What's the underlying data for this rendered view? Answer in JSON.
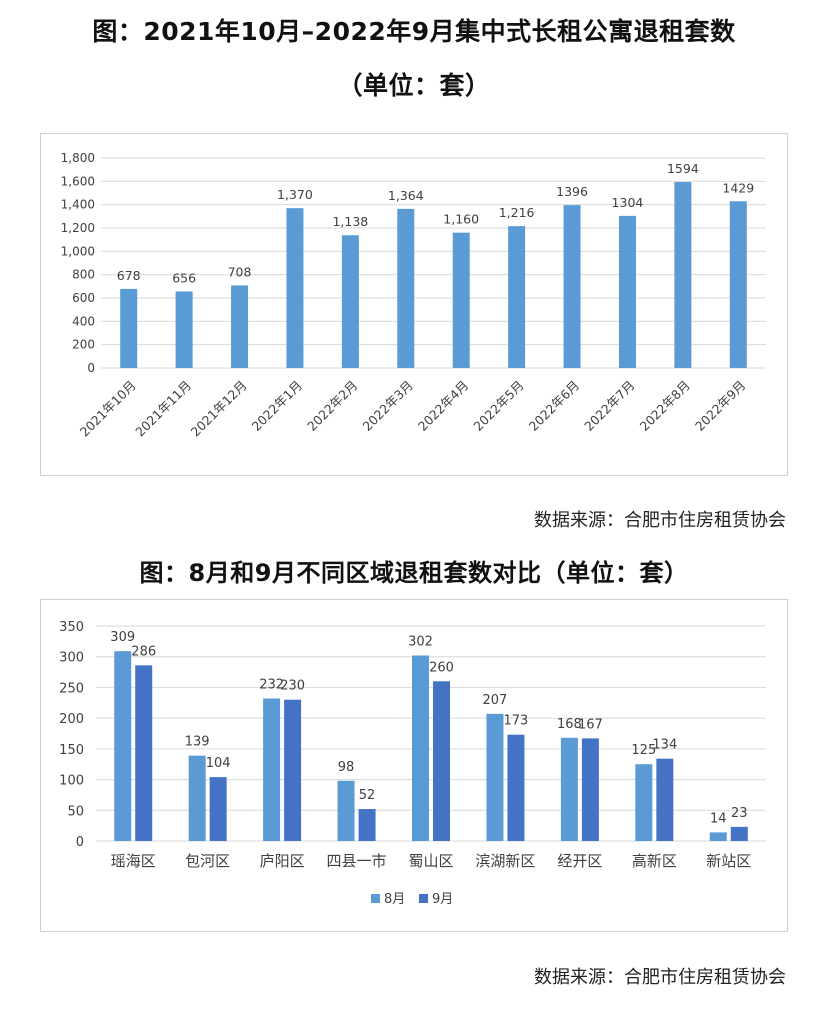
{
  "chart1_title": "图：2021年10月–2022年9月集中式长租公寓退租套数",
  "chart1_subtitle": "（单位：套）",
  "chart1_source": "数据来源：合肥市住房租赁协会",
  "chart2_title": "图：8月和9月不同区域退租套数对比（单位：套）",
  "chart2_source": "数据来源：合肥市住房租赁协会",
  "chart_data": [
    {
      "type": "bar",
      "title": "图：2021年10月–2022年9月集中式长租公寓退租套数",
      "subtitle": "（单位：套）",
      "categories": [
        "2021年10月",
        "2021年11月",
        "2021年12月",
        "2022年1月",
        "2022年2月",
        "2022年3月",
        "2022年4月",
        "2022年5月",
        "2022年6月",
        "2022年7月",
        "2022年8月",
        "2022年9月"
      ],
      "values": [
        678,
        656,
        708,
        1370,
        1138,
        1364,
        1160,
        1216,
        1396,
        1304,
        1594,
        1429
      ],
      "data_labels": [
        "678",
        "656",
        "708",
        "1,370",
        "1,138",
        "1,364",
        "1,160",
        "1,216",
        "1396",
        "1304",
        "1594",
        "1429"
      ],
      "yticks": [
        "0",
        "200",
        "400",
        "600",
        "800",
        "1,000",
        "1,200",
        "1,400",
        "1,600",
        "1,800"
      ],
      "ylim": [
        0,
        1800
      ],
      "grid": true,
      "color": "#5b9bd5"
    },
    {
      "type": "bar",
      "title": "图：8月和9月不同区域退租套数对比（单位：套）",
      "categories": [
        "瑶海区",
        "包河区",
        "庐阳区",
        "四县一市",
        "蜀山区",
        "滨湖新区",
        "经开区",
        "高新区",
        "新站区"
      ],
      "series": [
        {
          "name": "8月",
          "values": [
            309,
            139,
            232,
            98,
            302,
            207,
            168,
            125,
            14
          ],
          "color": "#5b9bd5"
        },
        {
          "name": "9月",
          "values": [
            286,
            104,
            230,
            52,
            260,
            173,
            167,
            134,
            23
          ],
          "color": "#4472c4"
        }
      ],
      "yticks": [
        "0",
        "50",
        "100",
        "150",
        "200",
        "250",
        "300",
        "350"
      ],
      "ylim": [
        0,
        350
      ],
      "grid": true,
      "legend": "bottom"
    }
  ]
}
